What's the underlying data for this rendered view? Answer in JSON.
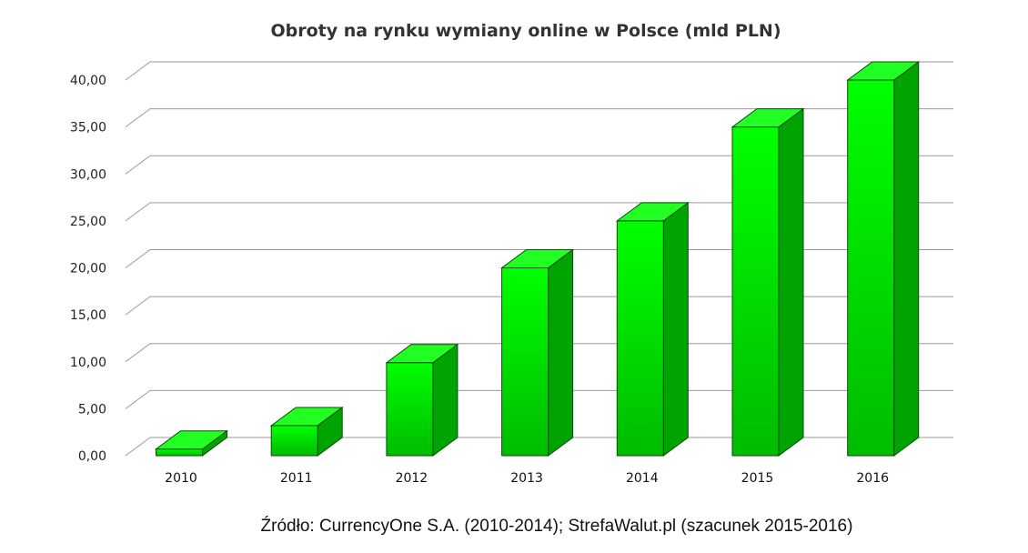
{
  "chart_data": {
    "type": "bar",
    "title": "Obroty na rynku wymiany online w Polsce (mld PLN)",
    "categories": [
      "2010",
      "2011",
      "2012",
      "2013",
      "2014",
      "2015",
      "2016"
    ],
    "values": [
      0.7,
      3.2,
      9.9,
      20.0,
      25.0,
      35.0,
      40.0
    ],
    "ylim": [
      0,
      40
    ],
    "yticks": [
      "0,00",
      "5,00",
      "10,00",
      "15,00",
      "20,00",
      "25,00",
      "30,00",
      "35,00",
      "40,00"
    ],
    "xlabel": "",
    "ylabel": "",
    "grid": true,
    "bar_style": "3d",
    "colors": {
      "bar_front_top": "#00ff00",
      "bar_front_bottom": "#00bb00",
      "bar_top": "#22ff22",
      "bar_side": "#00a400",
      "grid": "#9a9a9a"
    }
  },
  "source": "Źródło: CurrencyOne S.A. (2010-2014); StrefaWalut.pl (szacunek 2015-2016)"
}
